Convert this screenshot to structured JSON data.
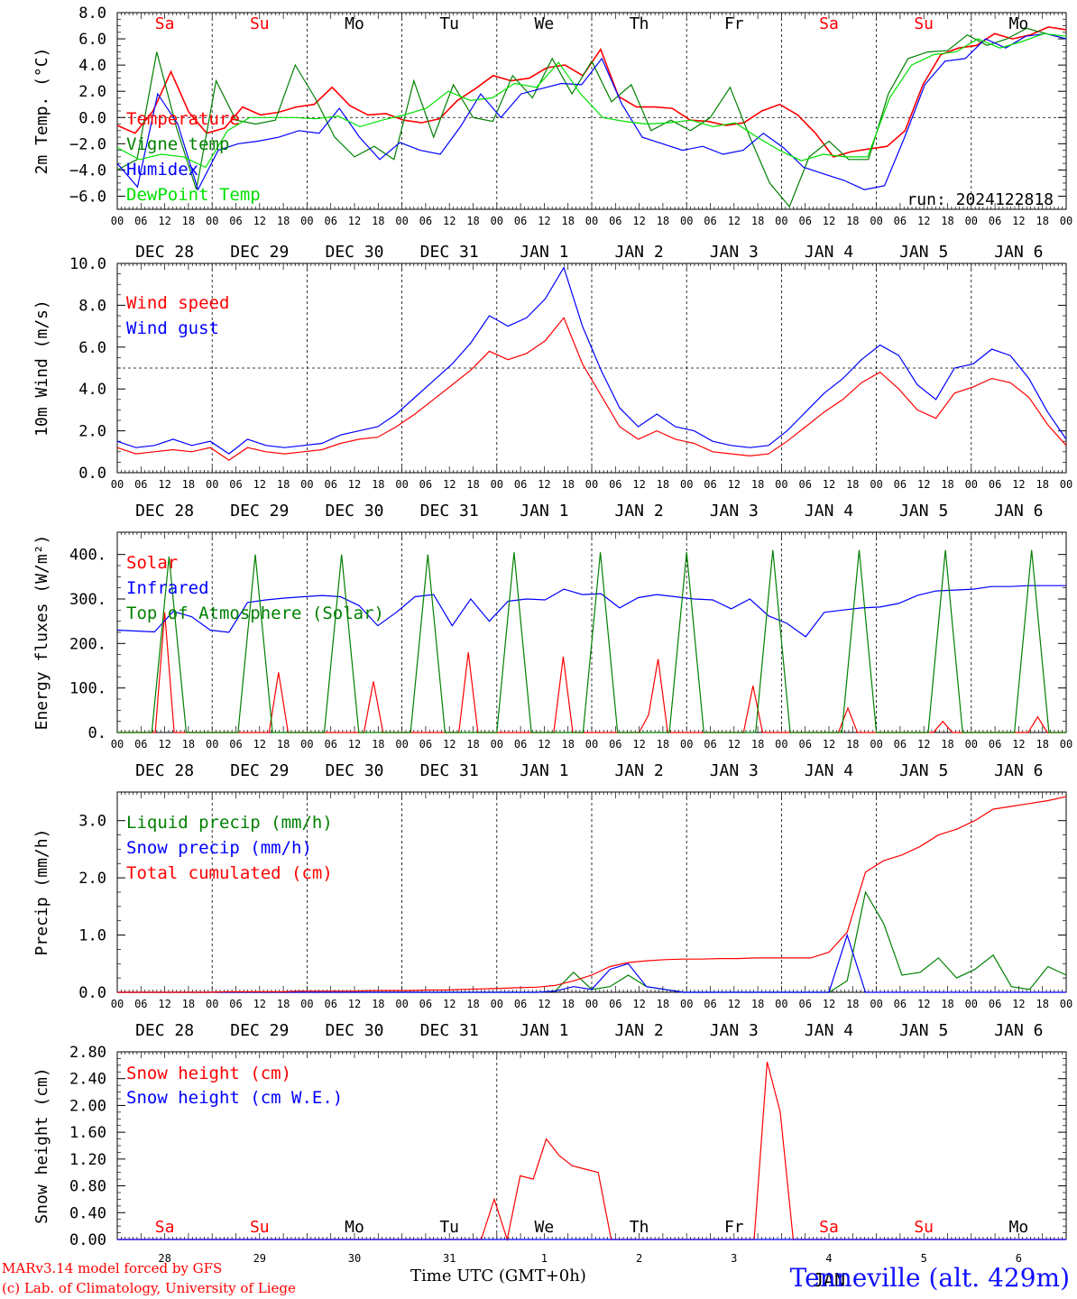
{
  "run_label": "run: 2024122818",
  "footer": {
    "model": "MARv3.14 model forced by GFS",
    "copyright": "(c) Lab. of Climatology, University of Liege",
    "time_axis": "Time UTC (GMT+0h)",
    "month": "JAN",
    "station": "Tenneville (alt. 429m)"
  },
  "days": [
    "Sa",
    "Su",
    "Mo",
    "Tu",
    "We",
    "Th",
    "Fr",
    "Sa",
    "Su",
    "Mo"
  ],
  "weekend_days": [
    0,
    1,
    7,
    8
  ],
  "date_labels": [
    "DEC 28",
    "DEC 29",
    "DEC 30",
    "DEC 31",
    "JAN  1",
    "JAN  2",
    "JAN  3",
    "JAN  4",
    "JAN  5",
    "JAN  6"
  ],
  "day_numbers": [
    "28",
    "29",
    "30",
    "31",
    "1",
    "2",
    "3",
    "4",
    "5",
    "6"
  ],
  "hour_ticks": [
    "00",
    "06",
    "12",
    "18"
  ],
  "colors": {
    "red": "#ff0000",
    "green": "#008000",
    "blue": "#0000ff",
    "light_green": "#00e000"
  },
  "chart_data": [
    {
      "type": "line",
      "ylabel": "2m Temp. (°C)",
      "ylim": [
        -7,
        8
      ],
      "yticks": [
        -6,
        -4,
        -2,
        0,
        2,
        4,
        6,
        8
      ],
      "ytick_labels": [
        "−6.0",
        "−4.0",
        "−2.0",
        "0.0",
        "2.0",
        "4.0",
        "6.0",
        "8.0"
      ],
      "hline": 0,
      "x_hours_step": 6,
      "series": [
        {
          "name": "Temperature",
          "color": "#ff0000",
          "values": [
            -0.6,
            -1.2,
            0.5,
            3.5,
            0.4,
            -1.2,
            -0.8,
            0.8,
            0.2,
            0.4,
            0.8,
            1.0,
            2.3,
            0.9,
            0.2,
            0.3,
            -0.2,
            -0.4,
            -0.1,
            1.3,
            2.2,
            3.2,
            2.8,
            3.0,
            3.8,
            4.0,
            3.2,
            5.2,
            1.6,
            0.8,
            0.8,
            0.7,
            -0.2,
            -0.3,
            -0.6,
            -0.4,
            0.5,
            1.0,
            0.2,
            -1.2,
            -3.0,
            -2.6,
            -2.4,
            -2.2,
            -1.0,
            2.5,
            4.8,
            5.3,
            5.5,
            6.4,
            6.0,
            6.3,
            6.9,
            6.7
          ]
        },
        {
          "name": "Vigne temp",
          "color": "#008000",
          "values": [
            -4.0,
            -3.2,
            5.0,
            -0.8,
            -5.5,
            2.8,
            -0.2,
            -0.5,
            -0.2,
            4.0,
            1.5,
            -1.5,
            -3.0,
            -2.2,
            -3.2,
            2.8,
            -1.5,
            2.5,
            0.0,
            -0.3,
            3.2,
            1.5,
            4.5,
            1.8,
            4.3,
            1.2,
            2.5,
            -1.0,
            -0.2,
            -1.0,
            0.0,
            2.3,
            -1.5,
            -5.0,
            -6.8,
            -3.0,
            -1.8,
            -3.2,
            -3.2,
            1.8,
            4.5,
            5.0,
            5.1,
            6.3,
            5.5,
            6.0,
            6.8,
            6.4,
            6.0
          ]
        },
        {
          "name": "Humidex",
          "color": "#0000ff",
          "values": [
            -3.5,
            -5.3,
            1.8,
            -0.5,
            -5.5,
            -2.5,
            -2.0,
            -1.8,
            -1.5,
            -1.0,
            -1.2,
            0.7,
            -1.5,
            -3.2,
            -1.9,
            -2.5,
            -2.8,
            -0.7,
            1.8,
            0.0,
            1.8,
            2.2,
            2.6,
            2.5,
            4.5,
            1.0,
            -1.5,
            -2.0,
            -2.5,
            -2.2,
            -2.8,
            -2.5,
            -1.2,
            -2.3,
            -3.8,
            -4.3,
            -4.8,
            -5.5,
            -5.2,
            -1.5,
            2.5,
            4.3,
            4.5,
            6.0,
            5.3,
            6.2,
            6.4,
            6.0
          ]
        },
        {
          "name": "DewPoint Temp",
          "color": "#00e000",
          "values": [
            -2.3,
            -3.2,
            -2.8,
            -3.0,
            -3.8,
            -1.0,
            0.0,
            0.0,
            0.0,
            -0.1,
            0.1,
            -0.7,
            -0.2,
            0.2,
            0.7,
            2.0,
            1.3,
            1.5,
            2.6,
            2.3,
            4.2,
            1.8,
            0.0,
            -0.3,
            -0.5,
            -0.4,
            -0.2,
            -0.7,
            -0.4,
            -1.5,
            -2.5,
            -3.3,
            -2.8,
            -3.0,
            -3.0,
            1.5,
            4.0,
            4.8,
            5.0,
            6.0,
            5.3,
            5.8,
            6.4,
            6.2
          ]
        }
      ]
    },
    {
      "type": "line",
      "ylabel": "10m Wind (m/s)",
      "ylim": [
        0,
        10
      ],
      "yticks": [
        0,
        2,
        4,
        6,
        8,
        10
      ],
      "ytick_labels": [
        "0.0",
        "2.0",
        "4.0",
        "6.0",
        "8.0",
        "10.0"
      ],
      "hline": 5,
      "x_hours_step": 6,
      "series": [
        {
          "name": "Wind speed",
          "color": "#ff0000",
          "values": [
            1.2,
            0.9,
            1.0,
            1.1,
            1.0,
            1.2,
            0.6,
            1.2,
            1.0,
            0.9,
            1.0,
            1.1,
            1.4,
            1.6,
            1.7,
            2.2,
            2.8,
            3.5,
            4.2,
            4.9,
            5.8,
            5.4,
            5.7,
            6.3,
            7.4,
            5.2,
            3.7,
            2.2,
            1.6,
            2.0,
            1.6,
            1.4,
            1.0,
            0.9,
            0.8,
            0.9,
            1.5,
            2.2,
            2.9,
            3.5,
            4.3,
            4.8,
            4.0,
            3.0,
            2.6,
            3.8,
            4.1,
            4.5,
            4.3,
            3.6,
            2.3,
            1.3
          ]
        },
        {
          "name": "Wind gust",
          "color": "#0000ff",
          "values": [
            1.5,
            1.2,
            1.3,
            1.6,
            1.3,
            1.5,
            0.9,
            1.6,
            1.3,
            1.2,
            1.3,
            1.4,
            1.8,
            2.0,
            2.2,
            2.8,
            3.6,
            4.4,
            5.2,
            6.2,
            7.5,
            7.0,
            7.4,
            8.3,
            9.8,
            7.0,
            4.9,
            3.1,
            2.2,
            2.8,
            2.2,
            2.0,
            1.5,
            1.3,
            1.2,
            1.3,
            2.0,
            2.9,
            3.8,
            4.5,
            5.4,
            6.1,
            5.6,
            4.2,
            3.5,
            5.0,
            5.2,
            5.9,
            5.6,
            4.5,
            2.9,
            1.6
          ]
        }
      ]
    },
    {
      "type": "line",
      "ylabel": "Energy fluxes (W/m²)",
      "ylim": [
        0,
        450
      ],
      "yticks": [
        0,
        100,
        200,
        300,
        400
      ],
      "ytick_labels": [
        "0.",
        "100.",
        "200.",
        "300.",
        "400."
      ],
      "x_hours_step": 6,
      "series": [
        {
          "name": "Solar",
          "color": "#ff0000",
          "values": [
            0,
            0,
            0,
            0,
            0,
            270,
            0,
            0,
            0,
            0,
            0,
            0,
            0,
            0,
            0,
            0,
            0,
            135,
            0,
            0,
            0,
            0,
            0,
            0,
            0,
            0,
            0,
            115,
            0,
            0,
            0,
            0,
            0,
            0,
            0,
            0,
            0,
            180,
            0,
            0,
            0,
            0,
            0,
            0,
            0,
            0,
            0,
            170,
            0,
            0,
            0,
            0,
            0,
            0,
            0,
            0,
            40,
            165,
            0,
            0,
            0,
            0,
            0,
            0,
            0,
            0,
            0,
            105,
            0,
            0,
            0,
            0,
            0,
            0,
            0,
            0,
            0,
            55,
            0,
            0,
            0,
            0,
            0,
            0,
            0,
            0,
            0,
            25,
            0,
            0,
            0,
            0,
            0,
            0,
            0,
            0,
            0,
            35,
            0,
            0,
            0
          ]
        },
        {
          "name": "Infrared",
          "color": "#0000ff",
          "values": [
            230,
            228,
            226,
            272,
            260,
            230,
            225,
            292,
            298,
            302,
            305,
            308,
            305,
            285,
            240,
            270,
            305,
            310,
            240,
            300,
            250,
            295,
            300,
            298,
            322,
            310,
            312,
            280,
            303,
            310,
            305,
            300,
            298,
            278,
            300,
            262,
            245,
            215,
            270,
            275,
            280,
            282,
            290,
            308,
            318,
            320,
            322,
            328,
            328,
            330,
            330,
            330
          ]
        },
        {
          "name": "Top of Atmosphere (Solar)",
          "color": "#008000",
          "values": [
            0,
            0,
            0,
            395,
            0,
            0,
            0,
            0,
            400,
            0,
            0,
            0,
            0,
            400,
            0,
            0,
            0,
            0,
            400,
            0,
            0,
            0,
            0,
            405,
            0,
            0,
            0,
            0,
            405,
            0,
            0,
            0,
            0,
            405,
            0,
            0,
            0,
            0,
            410,
            0,
            0,
            0,
            0,
            410,
            0,
            0,
            0,
            0,
            410,
            0,
            0,
            0,
            0,
            410,
            0,
            0
          ]
        }
      ]
    },
    {
      "type": "line",
      "ylabel": "Precip (mm/h)",
      "ylim": [
        0,
        3.5
      ],
      "yticks": [
        0,
        1,
        2,
        3
      ],
      "ytick_labels": [
        "0.0",
        "1.0",
        "2.0",
        "3.0"
      ],
      "x_hours_step": 6,
      "series": [
        {
          "name": "Liquid precip (mm/h)",
          "color": "#008000",
          "values": [
            0,
            0,
            0,
            0,
            0,
            0,
            0,
            0,
            0,
            0,
            0,
            0,
            0,
            0,
            0,
            0,
            0,
            0,
            0,
            0,
            0,
            0,
            0,
            0,
            0.02,
            0.35,
            0.05,
            0.1,
            0.3,
            0.1,
            0.05,
            0,
            0,
            0,
            0,
            0,
            0,
            0,
            0,
            0,
            0.2,
            1.75,
            1.2,
            0.3,
            0.35,
            0.6,
            0.25,
            0.4,
            0.65,
            0.1,
            0.05,
            0.45,
            0.3
          ]
        },
        {
          "name": "Snow precip (mm/h)",
          "color": "#0000ff",
          "values": [
            0,
            0,
            0,
            0,
            0,
            0,
            0,
            0,
            0,
            0,
            0,
            0,
            0,
            0,
            0,
            0,
            0,
            0,
            0,
            0,
            0,
            0,
            0,
            0,
            0.02,
            0.1,
            0.05,
            0.4,
            0.5,
            0.1,
            0.05,
            0,
            0,
            0,
            0,
            0,
            0,
            0,
            0,
            0,
            1.0,
            0,
            0,
            0,
            0,
            0,
            0,
            0,
            0,
            0,
            0,
            0,
            0
          ]
        },
        {
          "name": "Total cumulated (cm)",
          "color": "#ff0000",
          "values": [
            0,
            0,
            0,
            0,
            0,
            0,
            0.01,
            0.01,
            0.01,
            0.01,
            0.02,
            0.02,
            0.02,
            0.02,
            0.03,
            0.03,
            0.03,
            0.04,
            0.04,
            0.05,
            0.06,
            0.07,
            0.08,
            0.09,
            0.12,
            0.2,
            0.3,
            0.45,
            0.52,
            0.55,
            0.57,
            0.58,
            0.58,
            0.59,
            0.59,
            0.6,
            0.6,
            0.6,
            0.6,
            0.7,
            1.05,
            2.1,
            2.3,
            2.4,
            2.55,
            2.75,
            2.85,
            3.0,
            3.2,
            3.25,
            3.3,
            3.35,
            3.42
          ]
        }
      ]
    },
    {
      "type": "line",
      "ylabel": "Snow height (cm)",
      "ylim": [
        0,
        2.8
      ],
      "yticks": [
        0,
        0.4,
        0.8,
        1.2,
        1.6,
        2.0,
        2.4,
        2.8
      ],
      "ytick_labels": [
        "0.00",
        "0.40",
        "0.80",
        "1.20",
        "1.60",
        "2.00",
        "2.40",
        "2.80"
      ],
      "x_hours_step": 6,
      "series": [
        {
          "name": "Snow height (cm)",
          "color": "#ff0000",
          "values": [
            0,
            0,
            0,
            0,
            0,
            0,
            0,
            0,
            0,
            0,
            0,
            0,
            0,
            0,
            0,
            0,
            0,
            0,
            0,
            0,
            0,
            0,
            0,
            0,
            0,
            0,
            0,
            0,
            0,
            0.6,
            0,
            0.95,
            0.9,
            1.5,
            1.25,
            1.1,
            1.05,
            1.0,
            0,
            0,
            0,
            0,
            0,
            0,
            0,
            0,
            0,
            0,
            0,
            0,
            2.65,
            1.9,
            0,
            0,
            0,
            0,
            0,
            0,
            0,
            0,
            0,
            0,
            0,
            0,
            0,
            0,
            0,
            0,
            0,
            0,
            0,
            0,
            0,
            0
          ]
        },
        {
          "name": "Snow height (cm W.E.)",
          "color": "#0000ff",
          "values": [
            0,
            0,
            0,
            0,
            0,
            0,
            0,
            0,
            0,
            0,
            0,
            0,
            0,
            0,
            0,
            0,
            0,
            0,
            0,
            0,
            0,
            0,
            0,
            0,
            0,
            0,
            0,
            0,
            0,
            0,
            0,
            0,
            0,
            0,
            0,
            0,
            0,
            0,
            0,
            0,
            0,
            0,
            0,
            0,
            0,
            0,
            0,
            0,
            0,
            0,
            0,
            0,
            0,
            0,
            0,
            0,
            0,
            0,
            0,
            0,
            0,
            0,
            0,
            0,
            0,
            0,
            0,
            0,
            0,
            0,
            0,
            0,
            0,
            0
          ]
        }
      ]
    }
  ]
}
